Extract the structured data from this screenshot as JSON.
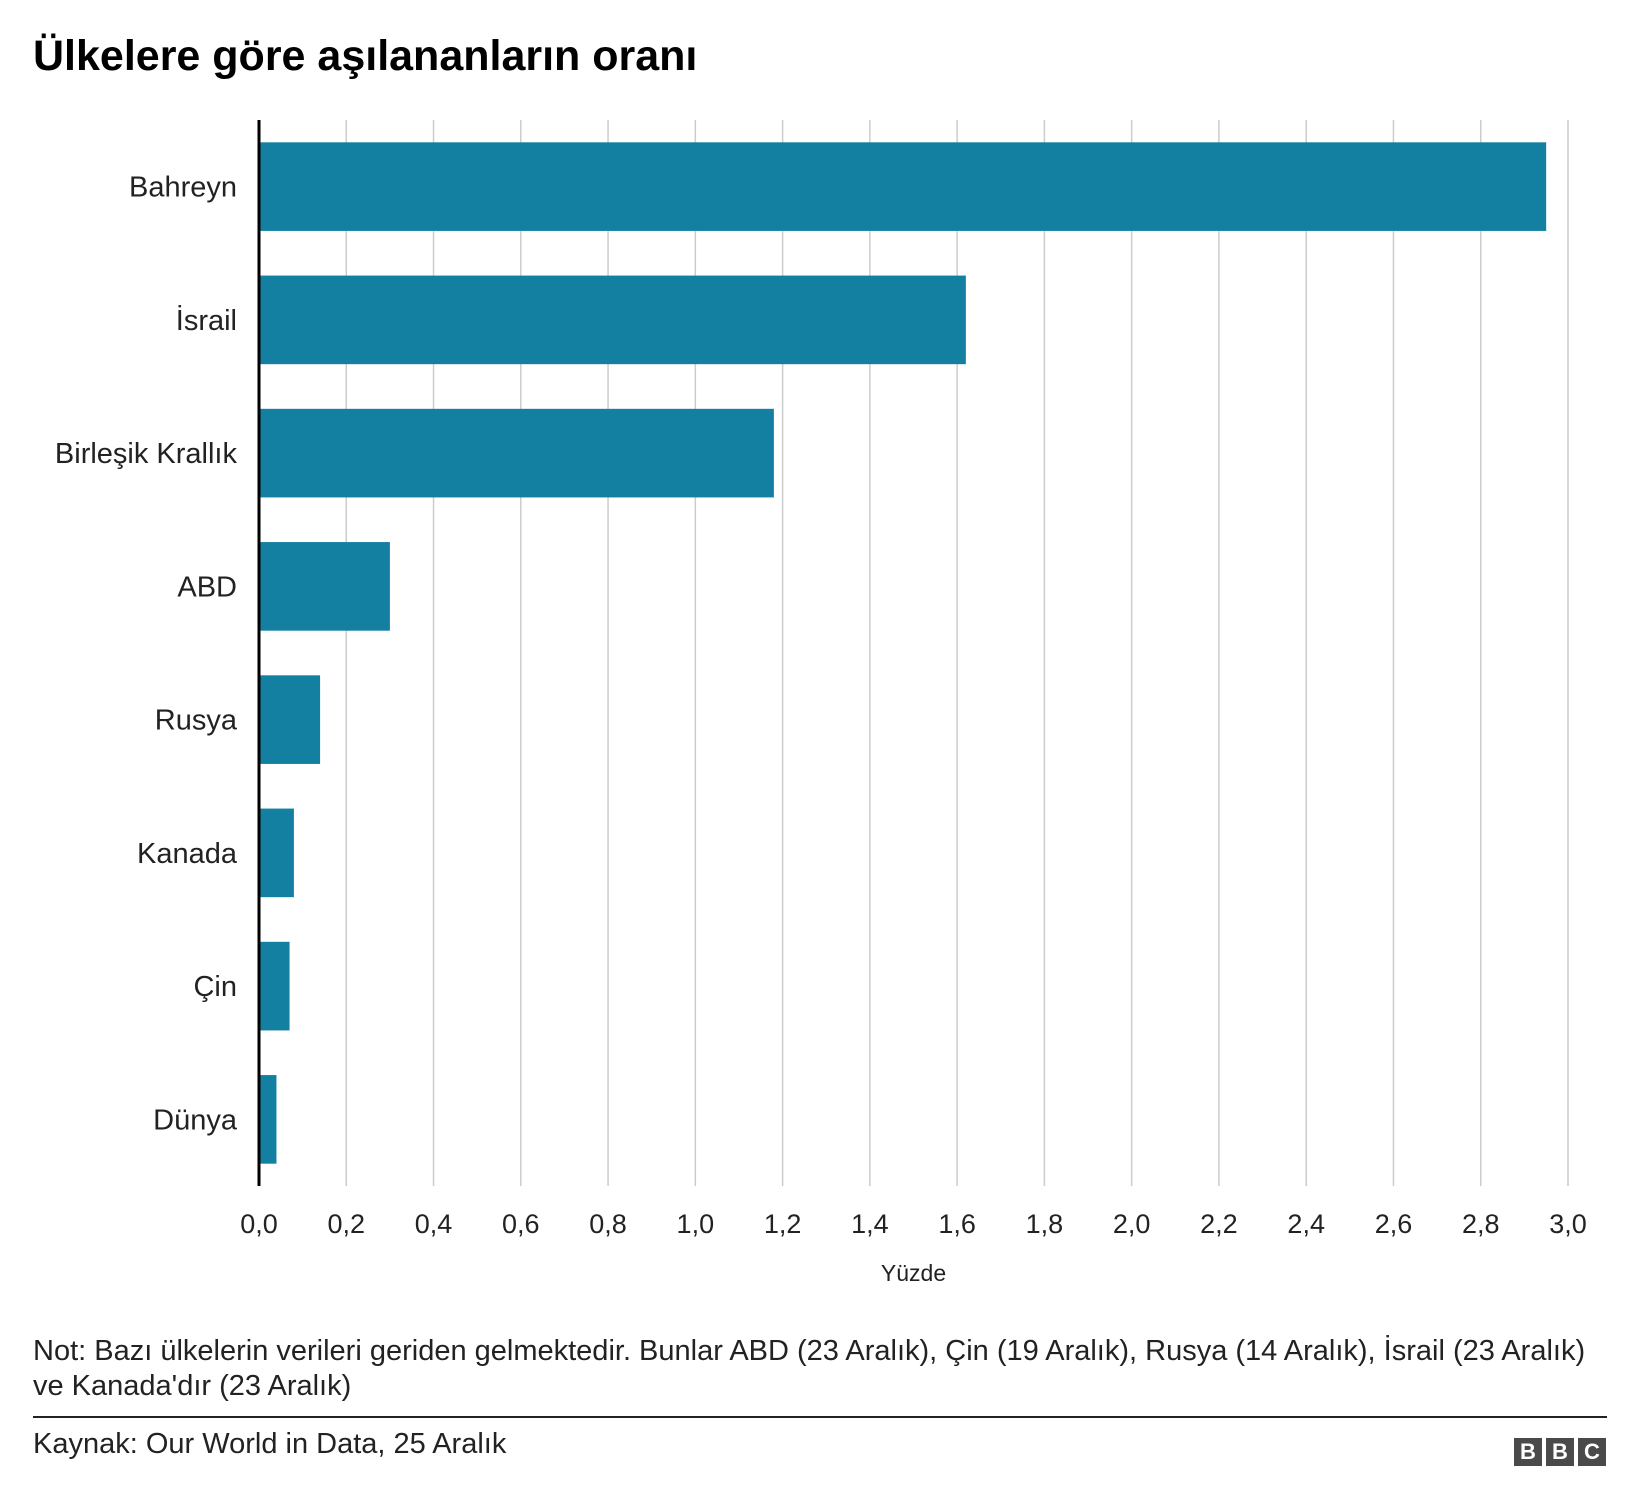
{
  "chart_data": {
    "type": "bar",
    "orientation": "horizontal",
    "title": "Ülkelere göre aşılananların oranı",
    "categories": [
      "Bahreyn",
      "İsrail",
      "Birleşik Krallık",
      "ABD",
      "Rusya",
      "Kanada",
      "Çin",
      "Dünya"
    ],
    "values": [
      2.95,
      1.62,
      1.18,
      0.3,
      0.14,
      0.08,
      0.07,
      0.04
    ],
    "xlabel": "Yüzde",
    "ylabel": "",
    "xlim": [
      0,
      3.0
    ],
    "xticks": [
      "0,0",
      "0,2",
      "0,4",
      "0,6",
      "0,8",
      "1,0",
      "1,2",
      "1,4",
      "1,6",
      "1,8",
      "2,0",
      "2,2",
      "2,4",
      "2,6",
      "2,8",
      "3,0"
    ],
    "grid": true,
    "bar_color": "#1380A1",
    "grid_color": "#cccccc"
  },
  "footer": {
    "note": "Not: Bazı ülkelerin verileri geriden gelmektedir. Bunlar ABD (23 Aralık), Çin (19 Aralık), Rusya (14 Aralık), İsrail (23 Aralık) ve Kanada'dır (23 Aralık)",
    "source": "Kaynak: Our World in Data, 25 Aralık",
    "logo_letters": [
      "B",
      "B",
      "C"
    ]
  }
}
